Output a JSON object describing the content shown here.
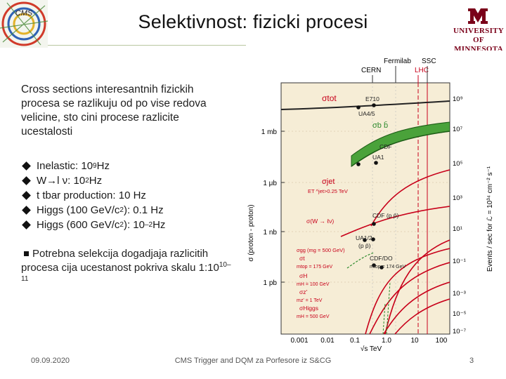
{
  "header": {
    "title": "Selektivnost: fizicki procesi",
    "cms_logo_text": "CMS",
    "university_logo": {
      "line1": "UNIVERSITY",
      "line2": "OF MINNESOTA",
      "color": "#7a0019"
    }
  },
  "intro": "Cross sections interesantnih fizickih procesa se razlikuju od po vise redova velicine, sto cini procese razlicite ucestalosti",
  "bullets": [
    {
      "pre": "Inelastic: 10",
      "sup": "9",
      "post": "Hz"
    },
    {
      "pre": "W→l ν: 10",
      "sup": "2",
      "post": "Hz"
    },
    {
      "pre": "t tbar production: 10 Hz",
      "sup": "",
      "post": ""
    },
    {
      "pre": "Higgs (100 GeV/c",
      "sup": "2",
      "post": "): 0.1 Hz"
    },
    {
      "pre": "Higgs (600 GeV/c",
      "sup": "2",
      "post": "): 10",
      "sup2": "–2",
      "post2": "Hz"
    }
  ],
  "note": {
    "pre": "Potrebna selekcija dogadjaja razlicitih procesa cija ucestanost pokriva skalu 1:10",
    "sup": "10–11"
  },
  "footer": {
    "date": "09.09.2020",
    "center": "CMS Trigger and DQM za Porfesore iz S&CG",
    "page": "3"
  },
  "plot": {
    "top_labels": {
      "fermilab": "Fermilab",
      "ssc": "SSC",
      "cern": "CERN",
      "lhc": "LHC"
    },
    "y_left_title": "σ (proton - proton)",
    "y_left_ticks": [
      "1 mb",
      "1 μb",
      "1 nb",
      "1 pb"
    ],
    "y_right_title": "Events / sec for ℒ = 10³⁴ cm⁻² s⁻¹",
    "y_right_ticks": [
      "10⁹",
      "10⁷",
      "10⁵",
      "10³",
      "10¹",
      "10⁻¹",
      "10⁻³",
      "10⁻⁵",
      "10⁻⁷"
    ],
    "x_ticks": [
      "0.001",
      "0.01",
      "0.1",
      "1.0",
      "10",
      "100"
    ],
    "x_label": "√s   TeV",
    "curve_labels": {
      "sigma_tot": "σtot",
      "e710": "E710",
      "ua45": "UA4/5",
      "sigma_bb": "σb b̄",
      "cdf": "CDF",
      "ua1": "UA1",
      "sigma_jet": "σjet",
      "jet_cut": "ET ^jet>0.25 TeV",
      "w_lnu": "σ(W → ℓν)",
      "cdf_ppbar": "CDF (p p̄)",
      "ua12": "UA1/2",
      "ua12b": "(p p̄)",
      "cdf_do": "CDF/DO",
      "sigma_gg": "σgg (mg = 500 GeV)",
      "sigma_t": "σt",
      "mtop1": "mtop = 175 GeV",
      "mtop2": "mtop = 174 GeV",
      "sigma_h": "σH",
      "mh100": "mH = 100 GeV",
      "sigma_z": "σz'",
      "mz": "mz' = 1 TeV",
      "sigma_higgs": "σHiggs",
      "mh500": "mH = 500 GeV"
    }
  }
}
